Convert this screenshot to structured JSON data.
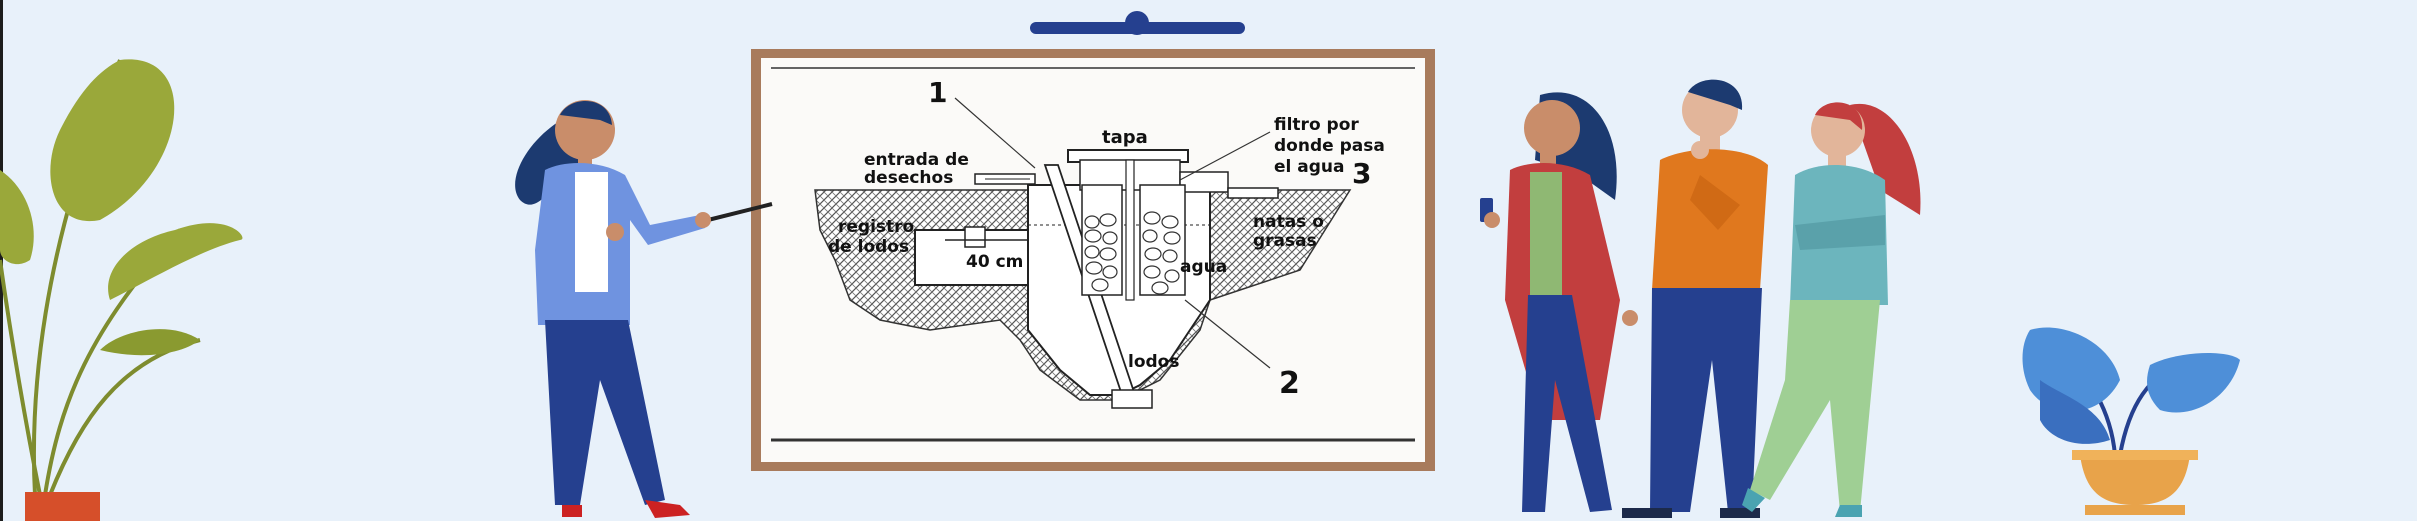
{
  "diagram": {
    "labels": {
      "n1": "1",
      "n2": "2",
      "n3": "3",
      "tapa": "tapa",
      "filtro_1": "filtro por",
      "filtro_2": "donde pasa",
      "filtro_3": "el agua",
      "entrada_1": "entrada de",
      "entrada_2": "desechos",
      "registro_1": "registro",
      "registro_2": "de lodos",
      "cm": "40 cm",
      "agua": "agua",
      "natas_1": "natas o",
      "natas_2": "grasas",
      "lodos": "lodos"
    }
  },
  "colors": {
    "background": "#e8f1fa",
    "frame": "#a87b5c",
    "hanger": "#25408f",
    "presenter_jacket": "#6f93e0",
    "pants": "#25408f",
    "woman_coat": "#c23e3e",
    "man_shirt": "#e0781e",
    "woman_top": "#6cb5bd",
    "pot_orange": "#e8a34a",
    "plant_green": "#9aa83a",
    "plant_blue": "#4e8fd8"
  },
  "icons": [
    "left-plant-icon",
    "presenter-icon",
    "pointer-icon",
    "woman-with-phone-icon",
    "thinking-man-icon",
    "woman-arms-crossed-icon",
    "right-plant-icon"
  ]
}
